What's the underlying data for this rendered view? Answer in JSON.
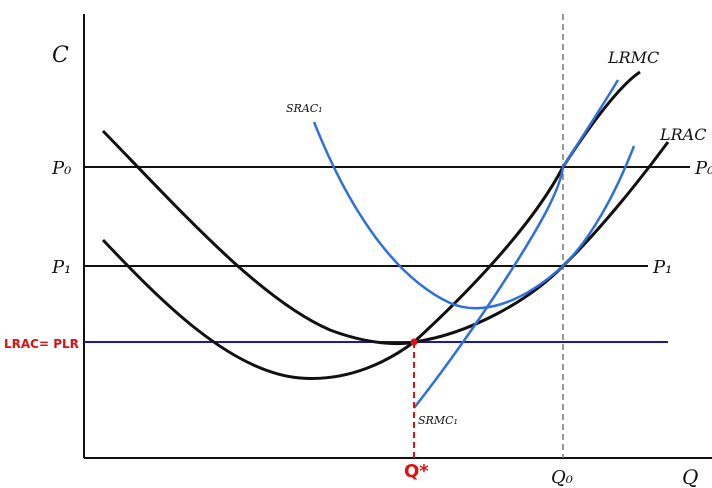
{
  "axes": {
    "y_label": "C",
    "x_label": "Q"
  },
  "price_lines": {
    "p0_left": "P₀",
    "p0_right": "P₀",
    "p1_left": "P₁",
    "p1_right": "P₁"
  },
  "curves": {
    "lrmc": "LRMC",
    "lrac": "LRAC",
    "srac": "SRAC₁",
    "srmc": "SRMC₁"
  },
  "quantities": {
    "q0": "Q₀",
    "q_star": "Q*"
  },
  "annotation": {
    "lrac_plr": "LRAC= PLR"
  },
  "colors": {
    "long_run_curves": "#111111",
    "short_run_curves": "#2f6fdc",
    "long_run_price_line": "#1a1aa6",
    "annotation": "#e01010"
  }
}
